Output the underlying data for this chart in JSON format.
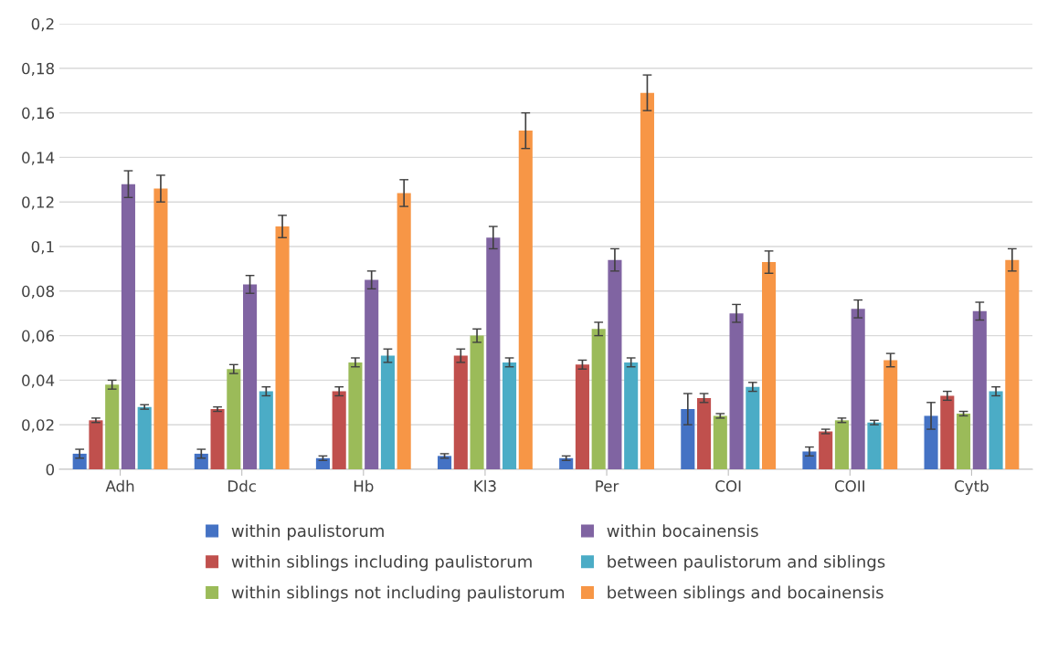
{
  "chart_data": {
    "type": "bar",
    "categories": [
      "Adh",
      "Ddc",
      "Hb",
      "Kl3",
      "Per",
      "COI",
      "COII",
      "Cytb"
    ],
    "series": [
      {
        "name": "within paulistorum",
        "color": "#4472c4",
        "values": [
          0.007,
          0.007,
          0.005,
          0.006,
          0.005,
          0.027,
          0.008,
          0.024
        ],
        "errors": [
          0.002,
          0.002,
          0.001,
          0.001,
          0.001,
          0.007,
          0.002,
          0.006
        ]
      },
      {
        "name": "within siblings including paulistorum",
        "color": "#c0504d",
        "values": [
          0.022,
          0.027,
          0.035,
          0.051,
          0.047,
          0.032,
          0.017,
          0.033
        ],
        "errors": [
          0.001,
          0.001,
          0.002,
          0.003,
          0.002,
          0.002,
          0.001,
          0.002
        ]
      },
      {
        "name": "within siblings not including paulistorum",
        "color": "#9bbb59",
        "values": [
          0.038,
          0.045,
          0.048,
          0.06,
          0.063,
          0.024,
          0.022,
          0.025
        ],
        "errors": [
          0.002,
          0.002,
          0.002,
          0.003,
          0.003,
          0.001,
          0.001,
          0.001
        ]
      },
      {
        "name": "within bocainensis",
        "color": "#8064a2",
        "values": [
          0.128,
          0.083,
          0.085,
          0.104,
          0.094,
          0.07,
          0.072,
          0.071
        ],
        "errors": [
          0.006,
          0.004,
          0.004,
          0.005,
          0.005,
          0.004,
          0.004,
          0.004
        ]
      },
      {
        "name": "between paulistorum and siblings",
        "color": "#4bacc6",
        "values": [
          0.028,
          0.035,
          0.051,
          0.048,
          0.048,
          0.037,
          0.021,
          0.035
        ],
        "errors": [
          0.001,
          0.002,
          0.003,
          0.002,
          0.002,
          0.002,
          0.001,
          0.002
        ]
      },
      {
        "name": "between siblings and bocainensis",
        "color": "#f79646",
        "values": [
          0.126,
          0.109,
          0.124,
          0.152,
          0.169,
          0.093,
          0.049,
          0.094
        ],
        "errors": [
          0.006,
          0.005,
          0.006,
          0.008,
          0.008,
          0.005,
          0.003,
          0.005
        ]
      }
    ],
    "ylim": [
      0,
      0.2
    ],
    "yticks": [
      0,
      {
        "value": 0.02,
        "label": "0,02"
      },
      {
        "value": 0.04,
        "label": "0,04"
      },
      {
        "value": 0.06,
        "label": "0,06"
      },
      {
        "value": 0.08,
        "label": "0,08"
      },
      {
        "value": 0.1,
        "label": "0,1"
      },
      {
        "value": 0.12,
        "label": "0,12"
      },
      {
        "value": 0.14,
        "label": "0,14"
      },
      {
        "value": 0.16,
        "label": "0,16"
      },
      {
        "value": 0.18,
        "label": "0,18"
      },
      {
        "value": 0.2,
        "label": "0,2"
      }
    ],
    "grid": "y",
    "legend": "bottom"
  }
}
